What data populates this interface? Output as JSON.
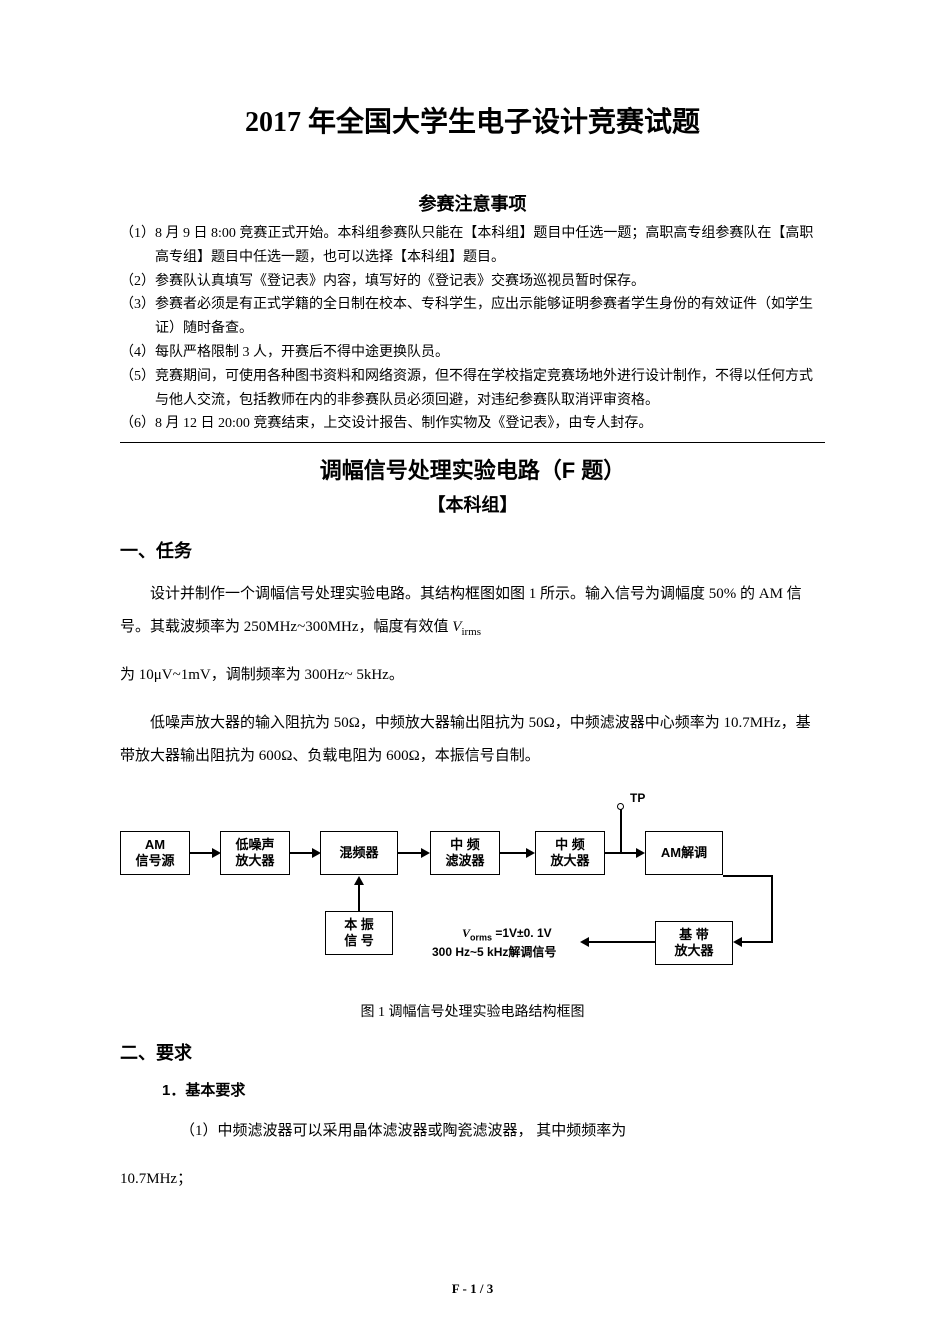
{
  "title": "2017 年全国大学生电子设计竞赛试题",
  "notice_title": "参赛注意事项",
  "notices": [
    {
      "n": "（1）",
      "t": "8 月 9 日 8:00 竞赛正式开始。本科组参赛队只能在【本科组】题目中任选一题；高职高专组参赛队在【高职高专组】题目中任选一题，也可以选择【本科组】题目。"
    },
    {
      "n": "（2）",
      "t": "参赛队认真填写《登记表》内容，填写好的《登记表》交赛场巡视员暂时保存。"
    },
    {
      "n": "（3）",
      "t": "参赛者必须是有正式学籍的全日制在校本、专科学生，应出示能够证明参赛者学生身份的有效证件（如学生证）随时备查。"
    },
    {
      "n": "（4）",
      "t": "每队严格限制 3 人，开赛后不得中途更换队员。"
    },
    {
      "n": "（5）",
      "t": "竞赛期间，可使用各种图书资料和网络资源，但不得在学校指定竞赛场地外进行设计制作，不得以任何方式与他人交流，包括教师在内的非参赛队员必须回避，对违纪参赛队取消评审资格。"
    },
    {
      "n": "（6）",
      "t": "8 月 12 日 20:00 竞赛结束，上交设计报告、制作实物及《登记表》，由专人封存。"
    }
  ],
  "subtitle": "调幅信号处理实验电路（F 题）",
  "group": "【本科组】",
  "section1": "一、任务",
  "task_p1_a": "设计并制作一个调幅信号处理实验电路。其结构框图如图 1 所示。输入信号为调幅度 50%  的 AM 信号。其载波频率为 250MHz~300MHz，幅度有效值 ",
  "task_p1_vi": "V",
  "task_p1_vi_sub": "irms",
  "task_p1_b": "为 10μV~1mV，调制频率为 300Hz~ 5kHz。",
  "task_p2": "低噪声放大器的输入阻抗为 50Ω，中频放大器输出阻抗为 50Ω，中频滤波器中心频率为 10.7MHz，基带放大器输出阻抗为 600Ω、负载电阻为 600Ω，本振信号自制。",
  "diagram": {
    "boxes": {
      "am_src": "AM\n信号源",
      "lna": "低噪声\n放大器",
      "mixer": "混频器",
      "if_filter": "中 频\n滤波器",
      "if_amp": "中 频\n放大器",
      "am_demod": "AM解调",
      "lo": "本 振\n信 号",
      "bb_amp": "基 带\n放大器"
    },
    "tp_label": "TP",
    "out_label_line1_a": "V",
    "out_label_line1_sub": "orms",
    "out_label_line1_b": " =1V±0. 1V",
    "out_label_line2": "300 Hz~5 kHz解调信号",
    "colors": {
      "line": "#000000",
      "bg": "#ffffff"
    }
  },
  "fig_caption": "图 1  调幅信号处理实验电路结构框图",
  "section2": "二、要求",
  "req_basic_heading": "1．基本要求",
  "req_item1_a": "（1）中频滤波器可以采用晶体滤波器或陶瓷滤波器， 其中频频率为",
  "req_item1_b": "10.7MHz；",
  "footer": "F - 1 / 3"
}
